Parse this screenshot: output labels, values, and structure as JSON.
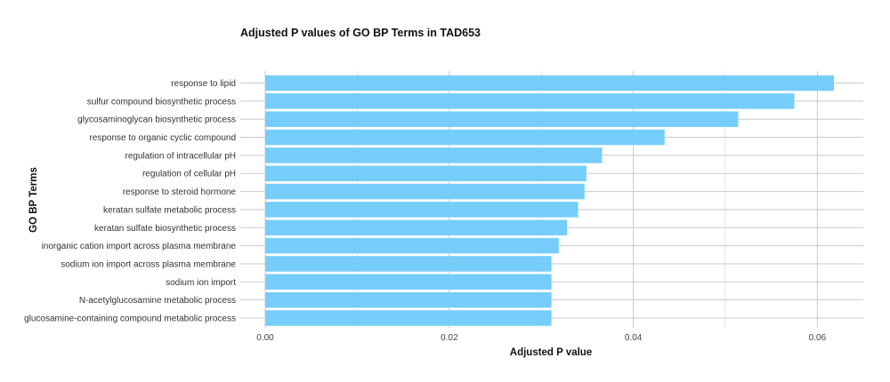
{
  "chart_data": {
    "type": "bar",
    "orientation": "horizontal",
    "title": "Adjusted P values of GO BP Terms in TAD653",
    "xlabel": "Adjusted P value",
    "ylabel": "GO BP Terms",
    "xlim": [
      0,
      0.065
    ],
    "xticks": [
      0.0,
      0.02,
      0.04,
      0.06
    ],
    "xtick_labels": [
      "0.00",
      "0.02",
      "0.04",
      "0.06"
    ],
    "bar_color": "#76CDF9",
    "grid": true,
    "legend": "none",
    "categories": [
      "response to lipid",
      "sulfur compound biosynthetic process",
      "glycosaminoglycan biosynthetic process",
      "response to organic cyclic compound",
      "regulation of intracellular pH",
      "regulation of cellular pH",
      "response to steroid hormone",
      "keratan sulfate metabolic process",
      "keratan sulfate biosynthetic process",
      "inorganic cation import across plasma membrane",
      "sodium ion import across plasma membrane",
      "sodium ion import",
      "N-acetylglucosamine metabolic process",
      "glucosamine-containing compound metabolic process"
    ],
    "values": [
      0.0618,
      0.0575,
      0.0514,
      0.0434,
      0.0366,
      0.0349,
      0.0347,
      0.034,
      0.0328,
      0.0319,
      0.0311,
      0.0311,
      0.0311,
      0.0311
    ]
  }
}
